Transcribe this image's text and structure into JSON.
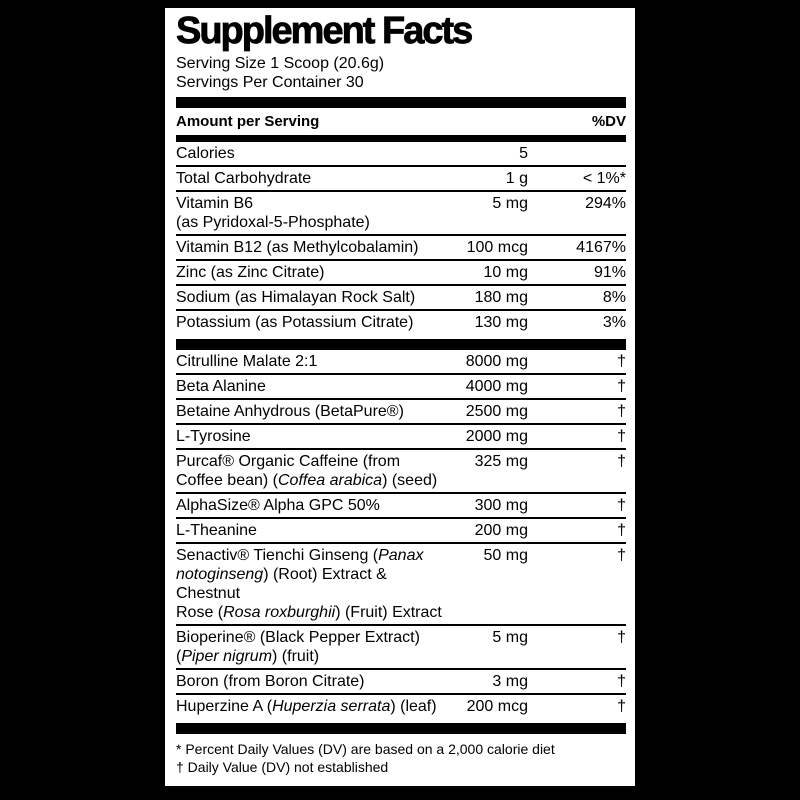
{
  "label": {
    "title": "Supplement Facts",
    "serving_size": "Serving Size 1 Scoop (20.6g)",
    "servings_per_container": "Servings Per Container 30",
    "columns": {
      "amount_header": "Amount per Serving",
      "dv_header": "%DV"
    },
    "sections": [
      {
        "rows": [
          {
            "name": [
              {
                "t": "Calories"
              }
            ],
            "amount": "5",
            "dv": ""
          },
          {
            "name": [
              {
                "t": "Total Carbohydrate"
              }
            ],
            "amount": "1 g",
            "dv": "< 1%*"
          },
          {
            "name": [
              {
                "t": "Vitamin B6"
              },
              {
                "br": true
              },
              {
                "t": "(as Pyridoxal-5-Phosphate)"
              }
            ],
            "amount": "5 mg",
            "dv": "294%"
          },
          {
            "name": [
              {
                "t": "Vitamin B12 (as Methylcobalamin)"
              }
            ],
            "amount": "100 mcg",
            "dv": "4167%"
          },
          {
            "name": [
              {
                "t": "Zinc (as Zinc Citrate)"
              }
            ],
            "amount": "10 mg",
            "dv": "91%"
          },
          {
            "name": [
              {
                "t": "Sodium (as Himalayan Rock Salt)"
              }
            ],
            "amount": "180 mg",
            "dv": "8%"
          },
          {
            "name": [
              {
                "t": "Potassium (as Potassium Citrate)"
              }
            ],
            "amount": "130 mg",
            "dv": "3%"
          }
        ]
      },
      {
        "rows": [
          {
            "name": [
              {
                "t": "Citrulline Malate 2:1"
              }
            ],
            "amount": "8000 mg",
            "dv": "†"
          },
          {
            "name": [
              {
                "t": "Beta Alanine"
              }
            ],
            "amount": "4000 mg",
            "dv": "†"
          },
          {
            "name": [
              {
                "t": "Betaine Anhydrous (BetaPure®)"
              }
            ],
            "amount": "2500 mg",
            "dv": "†"
          },
          {
            "name": [
              {
                "t": "L-Tyrosine"
              }
            ],
            "amount": "2000 mg",
            "dv": "†"
          },
          {
            "name": [
              {
                "t": "Purcaf® Organic Caffeine (from"
              },
              {
                "br": true
              },
              {
                "t": "Coffee bean) ("
              },
              {
                "t": "Coffea arabica",
                "i": true
              },
              {
                "t": ") (seed)"
              }
            ],
            "amount": "325 mg",
            "dv": "†"
          },
          {
            "name": [
              {
                "t": "AlphaSize® Alpha GPC 50%"
              }
            ],
            "amount": "300 mg",
            "dv": "†"
          },
          {
            "name": [
              {
                "t": "L-Theanine"
              }
            ],
            "amount": "200 mg",
            "dv": "†"
          },
          {
            "name": [
              {
                "t": "Senactiv® Tienchi Ginseng ("
              },
              {
                "t": "Panax",
                "i": true
              },
              {
                "br": true
              },
              {
                "t": "notoginseng",
                "i": true
              },
              {
                "t": ") (Root) Extract & Chestnut"
              },
              {
                "br": true
              },
              {
                "t": "Rose ("
              },
              {
                "t": "Rosa roxburghii",
                "i": true
              },
              {
                "t": ") (Fruit) Extract"
              }
            ],
            "amount": "50 mg",
            "dv": "†"
          },
          {
            "name": [
              {
                "t": "Bioperine® (Black Pepper Extract)"
              },
              {
                "br": true
              },
              {
                "t": "("
              },
              {
                "t": "Piper nigrum",
                "i": true
              },
              {
                "t": ") (fruit)"
              }
            ],
            "amount": "5 mg",
            "dv": "†"
          },
          {
            "name": [
              {
                "t": "Boron (from Boron Citrate)"
              }
            ],
            "amount": "3 mg",
            "dv": "†"
          },
          {
            "name": [
              {
                "t": "Huperzine A ("
              },
              {
                "t": "Huperzia serrata",
                "i": true
              },
              {
                "t": ") (leaf)"
              }
            ],
            "amount": "200 mcg",
            "dv": "†"
          }
        ]
      }
    ],
    "footnotes": [
      "* Percent Daily Values (DV) are based on a 2,000 calorie diet",
      "† Daily Value (DV) not established"
    ],
    "colors": {
      "background": "#000000",
      "panel_background": "#ffffff",
      "text": "#000000"
    }
  }
}
